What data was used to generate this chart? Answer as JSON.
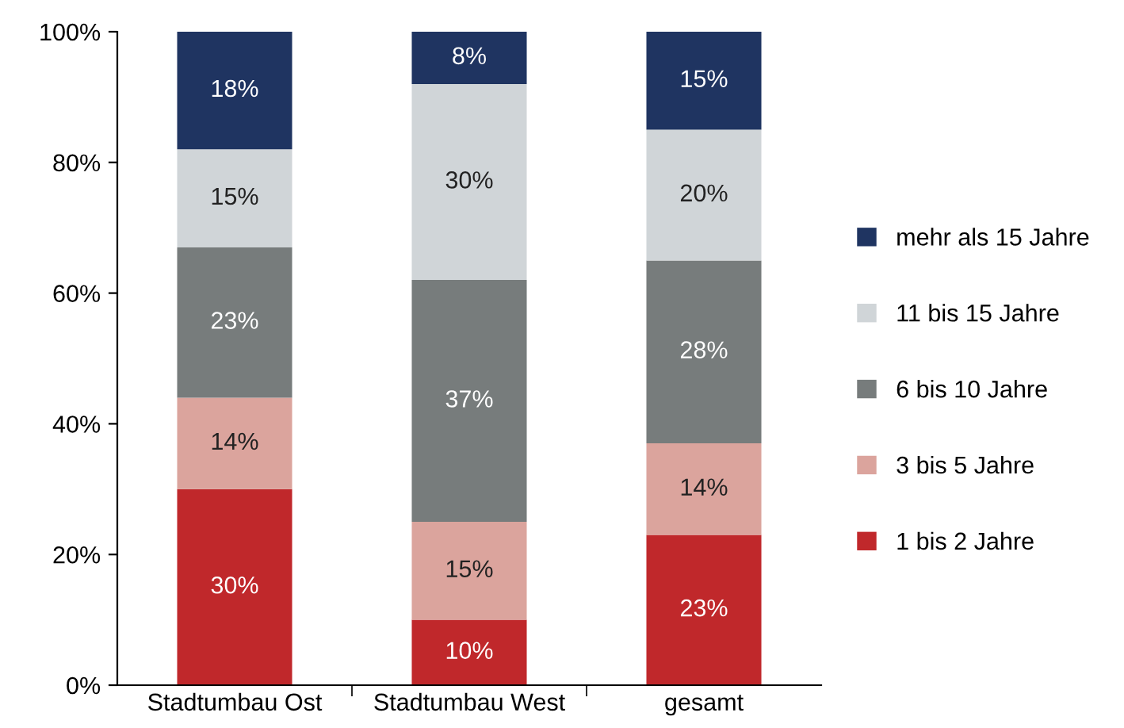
{
  "chart_data": {
    "type": "bar",
    "stacked": true,
    "categories": [
      "Stadtumbau Ost",
      "Stadtumbau West",
      "gesamt"
    ],
    "series": [
      {
        "name": "1 bis 2 Jahre",
        "color": "#c0282b",
        "values": [
          30,
          10,
          23
        ],
        "value_labels": [
          "30%",
          "10%",
          "23%"
        ]
      },
      {
        "name": "3 bis 5 Jahre",
        "color": "#dba49d",
        "values": [
          14,
          15,
          14
        ],
        "value_labels": [
          "14%",
          "15%",
          "14%"
        ]
      },
      {
        "name": "6 bis 10 Jahre",
        "color": "#777c7c",
        "values": [
          23,
          37,
          28
        ],
        "value_labels": [
          "23%",
          "37%",
          "28%"
        ]
      },
      {
        "name": "11 bis 15 Jahre",
        "color": "#d0d5d8",
        "values": [
          15,
          30,
          20
        ],
        "value_labels": [
          "15%",
          "30%",
          "20%"
        ]
      },
      {
        "name": "mehr als 15 Jahre",
        "color": "#1f3461",
        "values": [
          18,
          8,
          15
        ],
        "value_labels": [
          "18%",
          "8%",
          "15%"
        ]
      }
    ],
    "ylim": [
      0,
      100
    ],
    "yticks": [
      {
        "value": 0,
        "label": "0%"
      },
      {
        "value": 20,
        "label": "20%"
      },
      {
        "value": 40,
        "label": "40%"
      },
      {
        "value": 60,
        "label": "60%"
      },
      {
        "value": 80,
        "label": "80%"
      },
      {
        "value": 100,
        "label": "100%"
      }
    ],
    "grid": false,
    "legend": "right"
  }
}
